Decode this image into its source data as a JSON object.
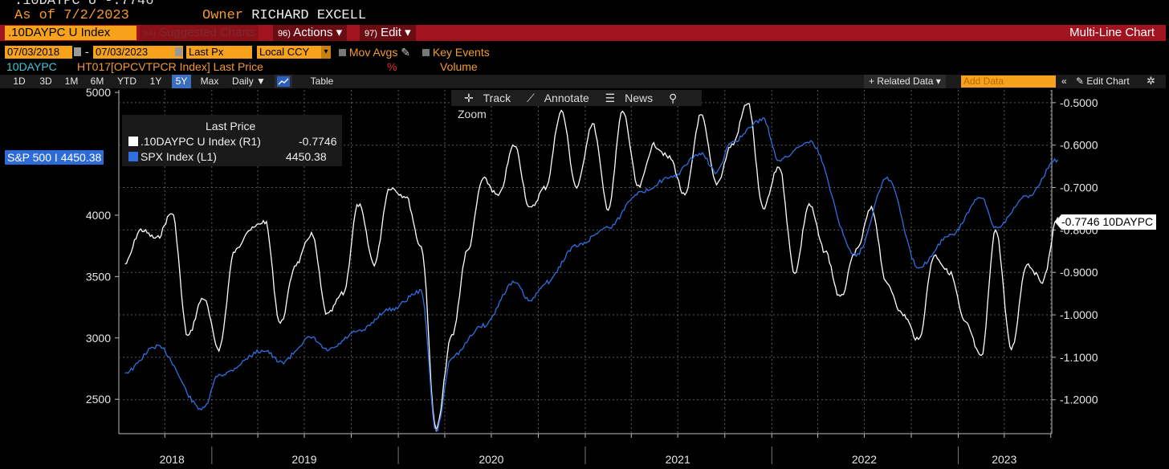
{
  "header": {
    "top_partial": ".10DAYPC U   -.7746",
    "as_of": "As of 7/2/2023",
    "owner_label": "Owner",
    "owner_name": "RICHARD EXCELL"
  },
  "menubar": {
    "ticker": ".10DAYPC U Index",
    "suggested_num": "94)",
    "suggested_label": "Suggested Charts",
    "actions_num": "96)",
    "actions_label": "Actions ▾",
    "edit_num": "97)",
    "edit_label": "Edit ▾",
    "chart_type": "Multi-Line Chart"
  },
  "params": {
    "start_date": "07/03/2018",
    "dash": "-",
    "end_date": "07/03/2023",
    "price_field": "Last Px",
    "currency": "Local CCY",
    "mov_avgs": "Mov Avgs",
    "key_events": "Key Events"
  },
  "series_row": {
    "ticker": "10DAYPC",
    "desc": "HT017[OPCVTPCR Index] Last Price",
    "pct": "%",
    "volume": "Volume"
  },
  "periods": [
    "1D",
    "3D",
    "1M",
    "6M",
    "YTD",
    "1Y",
    "5Y",
    "Max"
  ],
  "active_period": "5Y",
  "frequency": "Daily ▼",
  "table_label": "Table",
  "related_data": "+ Related Data ▾",
  "add_data_placeholder": "Add Data",
  "edit_chart": "✎ Edit Chart",
  "toolbar": {
    "track": "Track",
    "annotate": "Annotate",
    "news": "News",
    "zoom": "Zoom"
  },
  "legend": {
    "title": "Last Price",
    "items": [
      {
        "name": ".10DAYPC U Index  (R1)",
        "value": "-0.7746",
        "color": "#ffffff"
      },
      {
        "name": "SPX Index  (L1)",
        "value": "4450.38",
        "color": "#2f6fe0"
      }
    ]
  },
  "spx_last_label": "S&P 500 I 4450.38",
  "pc_last_label": "-0.7746 10DAYPC",
  "colors": {
    "accent": "#f7a21b",
    "menubar": "#a1141f",
    "spx": "#2f6fe0",
    "pc": "#ffffff"
  },
  "chart_data": {
    "type": "line",
    "x_labels": [
      "2018",
      "2019",
      "2020",
      "2021",
      "2022",
      "2023"
    ],
    "left_axis": {
      "ticks": [
        "5000",
        "4000",
        "3500",
        "3000",
        "2500"
      ],
      "ylim": [
        2220,
        5020
      ]
    },
    "right_axis": {
      "ticks": [
        "-0.5000",
        "-0.6000",
        "-0.7000",
        "-0.8000",
        "-0.9000",
        "-1.0000",
        "-1.1000",
        "-1.2000"
      ],
      "ylim": [
        -1.28,
        -0.47
      ]
    },
    "series": [
      {
        "name": "SPX Index",
        "axis": "left",
        "x": [
          "2018-07",
          "2018-09",
          "2018-12",
          "2019-01",
          "2019-04",
          "2019-05",
          "2019-07",
          "2019-08",
          "2019-10",
          "2019-12",
          "2020-02",
          "2020-03",
          "2020-04",
          "2020-06",
          "2020-08",
          "2020-09",
          "2020-10",
          "2020-12",
          "2021-02",
          "2021-04",
          "2021-06",
          "2021-08",
          "2021-09",
          "2021-10",
          "2021-12",
          "2022-01",
          "2022-03",
          "2022-06",
          "2022-08",
          "2022-10",
          "2022-12",
          "2023-02",
          "2023-03",
          "2023-05",
          "2023-07"
        ],
        "values": [
          2720,
          2930,
          2420,
          2700,
          2900,
          2800,
          3000,
          2900,
          3050,
          3230,
          3380,
          2240,
          2850,
          3100,
          3450,
          3300,
          3450,
          3750,
          3900,
          4180,
          4300,
          4500,
          4350,
          4600,
          4780,
          4450,
          4600,
          3680,
          4300,
          3580,
          3830,
          4140,
          3900,
          4150,
          4450
        ]
      },
      {
        "name": ".10DAYPC U Index",
        "axis": "right",
        "x": [
          "2018-07",
          "2018-08",
          "2018-09",
          "2018-10",
          "2018-11",
          "2018-12",
          "2019-01",
          "2019-02",
          "2019-03",
          "2019-04",
          "2019-05",
          "2019-06",
          "2019-07",
          "2019-08",
          "2019-09",
          "2019-10",
          "2019-11",
          "2019-12",
          "2020-01",
          "2020-02",
          "2020-03",
          "2020-04",
          "2020-05",
          "2020-06",
          "2020-07",
          "2020-08",
          "2020-09",
          "2020-10",
          "2020-11",
          "2020-12",
          "2021-01",
          "2021-02",
          "2021-03",
          "2021-04",
          "2021-05",
          "2021-06",
          "2021-07",
          "2021-08",
          "2021-09",
          "2021-10",
          "2021-11",
          "2021-12",
          "2022-01",
          "2022-02",
          "2022-03",
          "2022-04",
          "2022-05",
          "2022-06",
          "2022-07",
          "2022-08",
          "2022-09",
          "2022-10",
          "2022-11",
          "2022-12",
          "2023-01",
          "2023-02",
          "2023-03",
          "2023-04",
          "2023-05",
          "2023-06",
          "2023-07"
        ],
        "values": [
          -0.88,
          -0.8,
          -0.82,
          -0.76,
          -1.05,
          -0.96,
          -1.08,
          -0.85,
          -0.8,
          -0.78,
          -1.02,
          -0.88,
          -0.81,
          -1.0,
          -0.95,
          -0.74,
          -0.88,
          -0.7,
          -0.72,
          -0.84,
          -1.27,
          -1.05,
          -0.85,
          -0.68,
          -0.72,
          -0.6,
          -0.75,
          -0.7,
          -0.52,
          -0.7,
          -0.55,
          -0.75,
          -0.52,
          -0.7,
          -0.6,
          -0.63,
          -0.72,
          -0.53,
          -0.69,
          -0.6,
          -0.5,
          -0.75,
          -0.65,
          -0.9,
          -0.74,
          -0.85,
          -0.96,
          -0.85,
          -0.75,
          -0.93,
          -1.0,
          -1.06,
          -0.86,
          -0.9,
          -1.02,
          -1.1,
          -0.8,
          -1.08,
          -0.88,
          -0.92,
          -0.77
        ]
      }
    ],
    "grid": true,
    "legend_position": "top-left"
  }
}
